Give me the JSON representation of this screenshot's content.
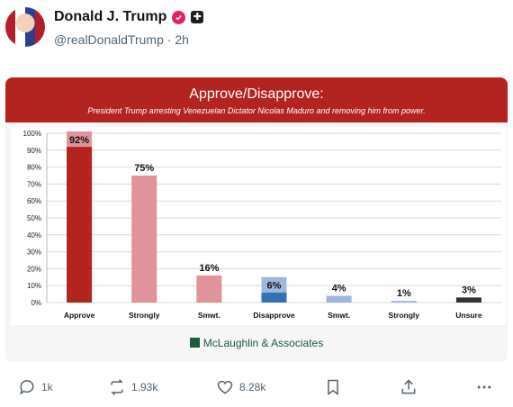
{
  "post": {
    "display_name": "Donald J. Trump",
    "handle": "@realDonaldTrump",
    "separator": "·",
    "time": "2h"
  },
  "colors": {
    "banner": "#b3231f",
    "approve": "#b3231f",
    "approve_light": "#e0939a",
    "disapprove": "#3470b8",
    "disapprove_light": "#9db8dc",
    "unsure": "#333333"
  },
  "card": {
    "title": "Approve/Disapprove:",
    "subtitle": "President Trump arresting Venezuelan Dictator Nicolas Maduro and removing him from power.",
    "logo_text": "McLaughlin & Associates"
  },
  "chart_data": {
    "type": "bar",
    "title": "Approve/Disapprove:",
    "subtitle": "President Trump arresting Venezuelan Dictator Nicolas Maduro and removing him from power.",
    "categories": [
      "Approve",
      "Strongly",
      "Smwt.",
      "Disapprove",
      "Smwt.",
      "Strongly",
      "Unsure"
    ],
    "values": [
      92,
      75,
      16,
      6,
      4,
      1,
      3
    ],
    "value_labels": [
      "92%",
      "75%",
      "16%",
      "6%",
      "4%",
      "1%",
      "3%"
    ],
    "bar_colors": [
      "#b3231f",
      "#e0939a",
      "#e0939a",
      "#3470b8",
      "#9db8dc",
      "#9db8dc",
      "#333333"
    ],
    "label_boxed": [
      true,
      false,
      false,
      true,
      false,
      false,
      false
    ],
    "ylim": [
      0,
      100
    ],
    "yticks": [
      "0%",
      "10%",
      "20%",
      "30%",
      "40%",
      "50%",
      "60%",
      "70%",
      "80%",
      "90%",
      "100%"
    ],
    "grid": true,
    "legend": "none"
  },
  "actions": {
    "reply_count": "1k",
    "repost_count": "1.93k",
    "like_count": "8.28k"
  }
}
